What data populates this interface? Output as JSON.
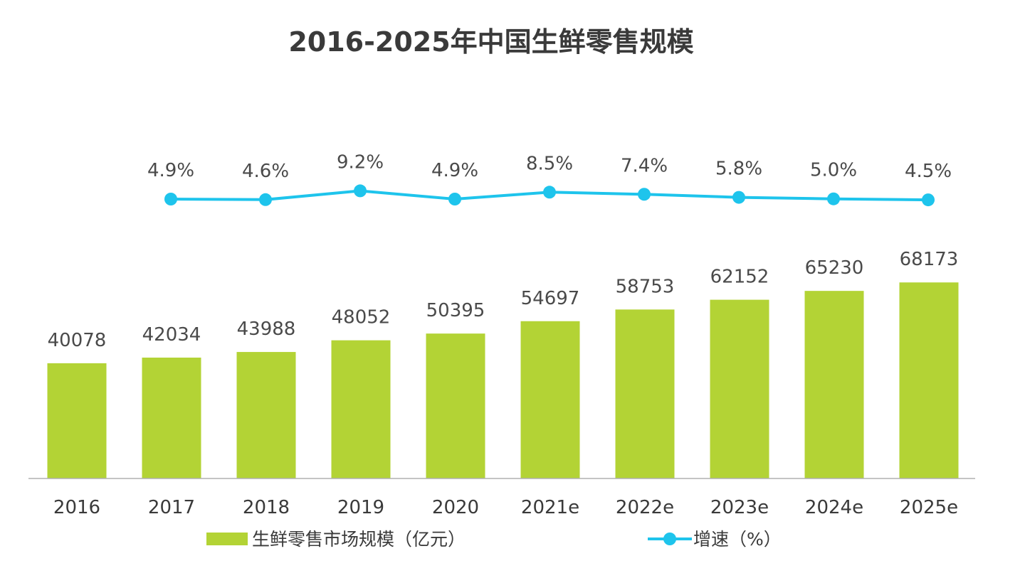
{
  "chart_data": {
    "type": "bar",
    "title": "2016-2025年中国生鲜零售规模",
    "categories": [
      "2016",
      "2017",
      "2018",
      "2019",
      "2020",
      "2021e",
      "2022e",
      "2023e",
      "2024e",
      "2025e"
    ],
    "series": [
      {
        "name": "生鲜零售市场规模（亿元）",
        "type": "bar",
        "values": [
          40078,
          42034,
          43988,
          48052,
          50395,
          54697,
          58753,
          62152,
          65230,
          68173
        ],
        "labels": [
          "40078",
          "42034",
          "43988",
          "48052",
          "50395",
          "54697",
          "58753",
          "62152",
          "65230",
          "68173"
        ],
        "color": "#b3d335"
      },
      {
        "name": "增速（%）",
        "type": "line",
        "values": [
          null,
          4.9,
          4.6,
          9.2,
          4.9,
          8.5,
          7.4,
          5.8,
          5.0,
          4.5
        ],
        "labels": [
          "",
          "4.9%",
          "4.6%",
          "9.2%",
          "4.9%",
          "8.5%",
          "7.4%",
          "5.8%",
          "5.0%",
          "4.5%"
        ],
        "color": "#1ec4ec"
      }
    ],
    "legend_position": "bottom",
    "grid": false,
    "axis_color": "#b0b0b0",
    "text_color": "#3a3a3a"
  }
}
